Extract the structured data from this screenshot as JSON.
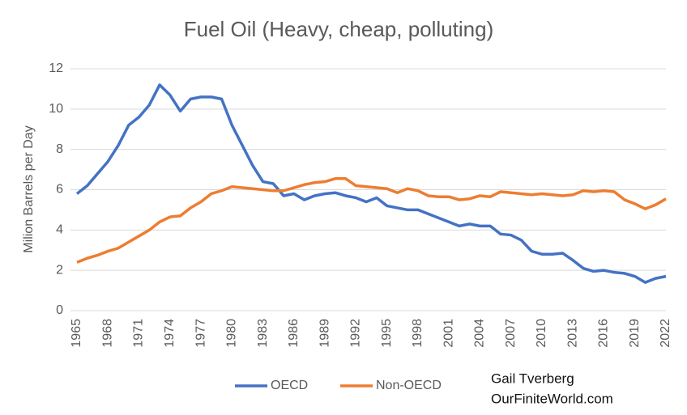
{
  "chart_data": {
    "type": "line",
    "title": "Fuel Oil (Heavy, cheap, polluting)",
    "y_label": "Milion Barrels per Day",
    "credits": [
      "Gail Tverberg",
      "OurFiniteWorld.com"
    ],
    "x": [
      1965,
      1966,
      1967,
      1968,
      1969,
      1970,
      1971,
      1972,
      1973,
      1974,
      1975,
      1976,
      1977,
      1978,
      1979,
      1980,
      1981,
      1982,
      1983,
      1984,
      1985,
      1986,
      1987,
      1988,
      1989,
      1990,
      1991,
      1992,
      1993,
      1994,
      1995,
      1996,
      1997,
      1998,
      1999,
      2000,
      2001,
      2002,
      2003,
      2004,
      2005,
      2006,
      2007,
      2008,
      2009,
      2010,
      2011,
      2012,
      2013,
      2014,
      2015,
      2016,
      2017,
      2018,
      2019,
      2020,
      2021,
      2022
    ],
    "xlim": [
      1965,
      2022
    ],
    "xticks": [
      1965,
      1968,
      1971,
      1974,
      1977,
      1980,
      1983,
      1986,
      1989,
      1992,
      1995,
      1998,
      2001,
      2004,
      2007,
      2010,
      2013,
      2016,
      2019,
      2022
    ],
    "ylim": [
      0,
      12
    ],
    "yticks": [
      0,
      2,
      4,
      6,
      8,
      10,
      12
    ],
    "grid": true,
    "series": [
      {
        "name": "OECD",
        "color": "#4472c4",
        "values": [
          5.8,
          6.2,
          6.8,
          7.4,
          8.2,
          9.2,
          9.6,
          10.2,
          11.2,
          10.7,
          9.9,
          10.5,
          10.6,
          10.6,
          10.5,
          9.2,
          8.2,
          7.2,
          6.4,
          6.3,
          5.7,
          5.8,
          5.5,
          5.7,
          5.8,
          5.85,
          5.7,
          5.6,
          5.4,
          5.6,
          5.2,
          5.1,
          5.0,
          5.0,
          4.8,
          4.6,
          4.4,
          4.2,
          4.3,
          4.2,
          4.2,
          3.8,
          3.75,
          3.5,
          2.95,
          2.8,
          2.8,
          2.85,
          2.5,
          2.1,
          1.95,
          2.0,
          1.9,
          1.85,
          1.7,
          1.4,
          1.6,
          1.7
        ]
      },
      {
        "name": "Non-OECD",
        "color": "#ed7d31",
        "values": [
          2.4,
          2.6,
          2.75,
          2.95,
          3.1,
          3.4,
          3.7,
          4.0,
          4.4,
          4.65,
          4.7,
          5.1,
          5.4,
          5.8,
          5.95,
          6.15,
          6.1,
          6.05,
          6.0,
          5.95,
          5.95,
          6.1,
          6.25,
          6.35,
          6.4,
          6.55,
          6.55,
          6.2,
          6.15,
          6.1,
          6.05,
          5.85,
          6.05,
          5.95,
          5.7,
          5.65,
          5.65,
          5.5,
          5.55,
          5.7,
          5.65,
          5.9,
          5.85,
          5.8,
          5.75,
          5.8,
          5.75,
          5.7,
          5.75,
          5.95,
          5.9,
          5.95,
          5.9,
          5.5,
          5.3,
          5.05,
          5.25,
          5.55
        ]
      }
    ]
  }
}
